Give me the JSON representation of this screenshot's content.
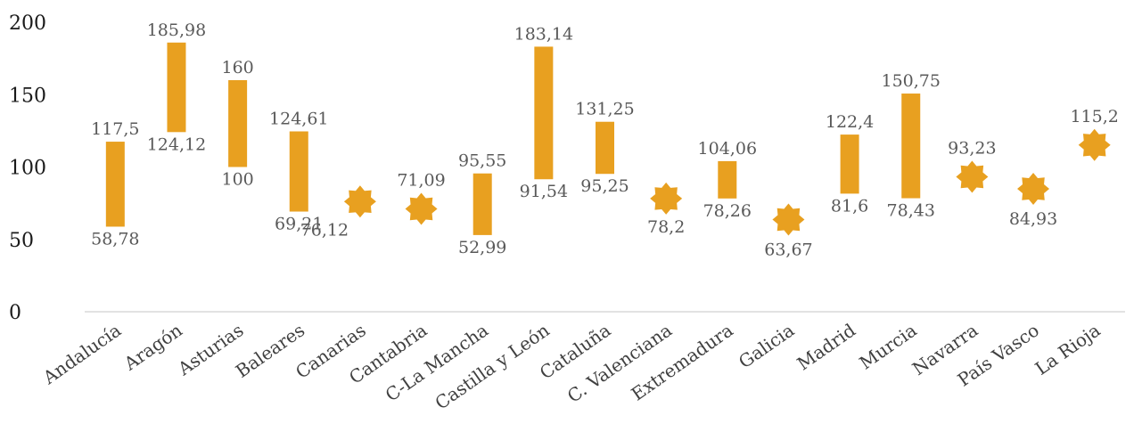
{
  "chart_data": {
    "type": "range-bar",
    "title": "",
    "xlabel": "",
    "ylabel": "",
    "ylim": [
      0,
      200
    ],
    "yticks": [
      0,
      50,
      100,
      150,
      200
    ],
    "grid": false,
    "color": "#E8A020",
    "categories": [
      "Andalucía",
      "Aragón",
      "Asturias",
      "Baleares",
      "Canarias",
      "Cantabria",
      "C-La Mancha",
      "Castilla y León",
      "Cataluña",
      "C. Valenciana",
      "Extremadura",
      "Galicia",
      "Madrid",
      "Murcia",
      "Navarra",
      "País Vasco",
      "La Rioja"
    ],
    "ranges": [
      {
        "low": 58.78,
        "high": 117.5,
        "low_label": "58,78",
        "high_label": "117,5"
      },
      {
        "low": 124.12,
        "high": 185.98,
        "low_label": "124,12",
        "high_label": "185,98"
      },
      {
        "low": 100,
        "high": 160,
        "low_label": "100",
        "high_label": "160"
      },
      {
        "low": 69.21,
        "high": 124.61,
        "low_label": "69,21",
        "high_label": "124,61"
      },
      {
        "value": 76.12,
        "label": "76,12"
      },
      {
        "value": 71.09,
        "label": "71,09"
      },
      {
        "low": 52.99,
        "high": 95.55,
        "low_label": "52,99",
        "high_label": "95,55"
      },
      {
        "low": 91.54,
        "high": 183.14,
        "low_label": "91,54",
        "high_label": "183,14"
      },
      {
        "low": 95.25,
        "high": 131.25,
        "low_label": "95,25",
        "high_label": "131,25"
      },
      {
        "value": 78.2,
        "label": "78,2"
      },
      {
        "low": 78.26,
        "high": 104.06,
        "low_label": "78,26",
        "high_label": "104,06"
      },
      {
        "value": 63.67,
        "label": "63,67"
      },
      {
        "low": 81.6,
        "high": 122.4,
        "low_label": "81,6",
        "high_label": "122,4"
      },
      {
        "low": 78.43,
        "high": 150.75,
        "low_label": "78,43",
        "high_label": "150,75"
      },
      {
        "value": 93.23,
        "label": "93,23"
      },
      {
        "value": 84.93,
        "label": "84,93"
      },
      {
        "value": 115.2,
        "label": "115,2"
      }
    ]
  }
}
